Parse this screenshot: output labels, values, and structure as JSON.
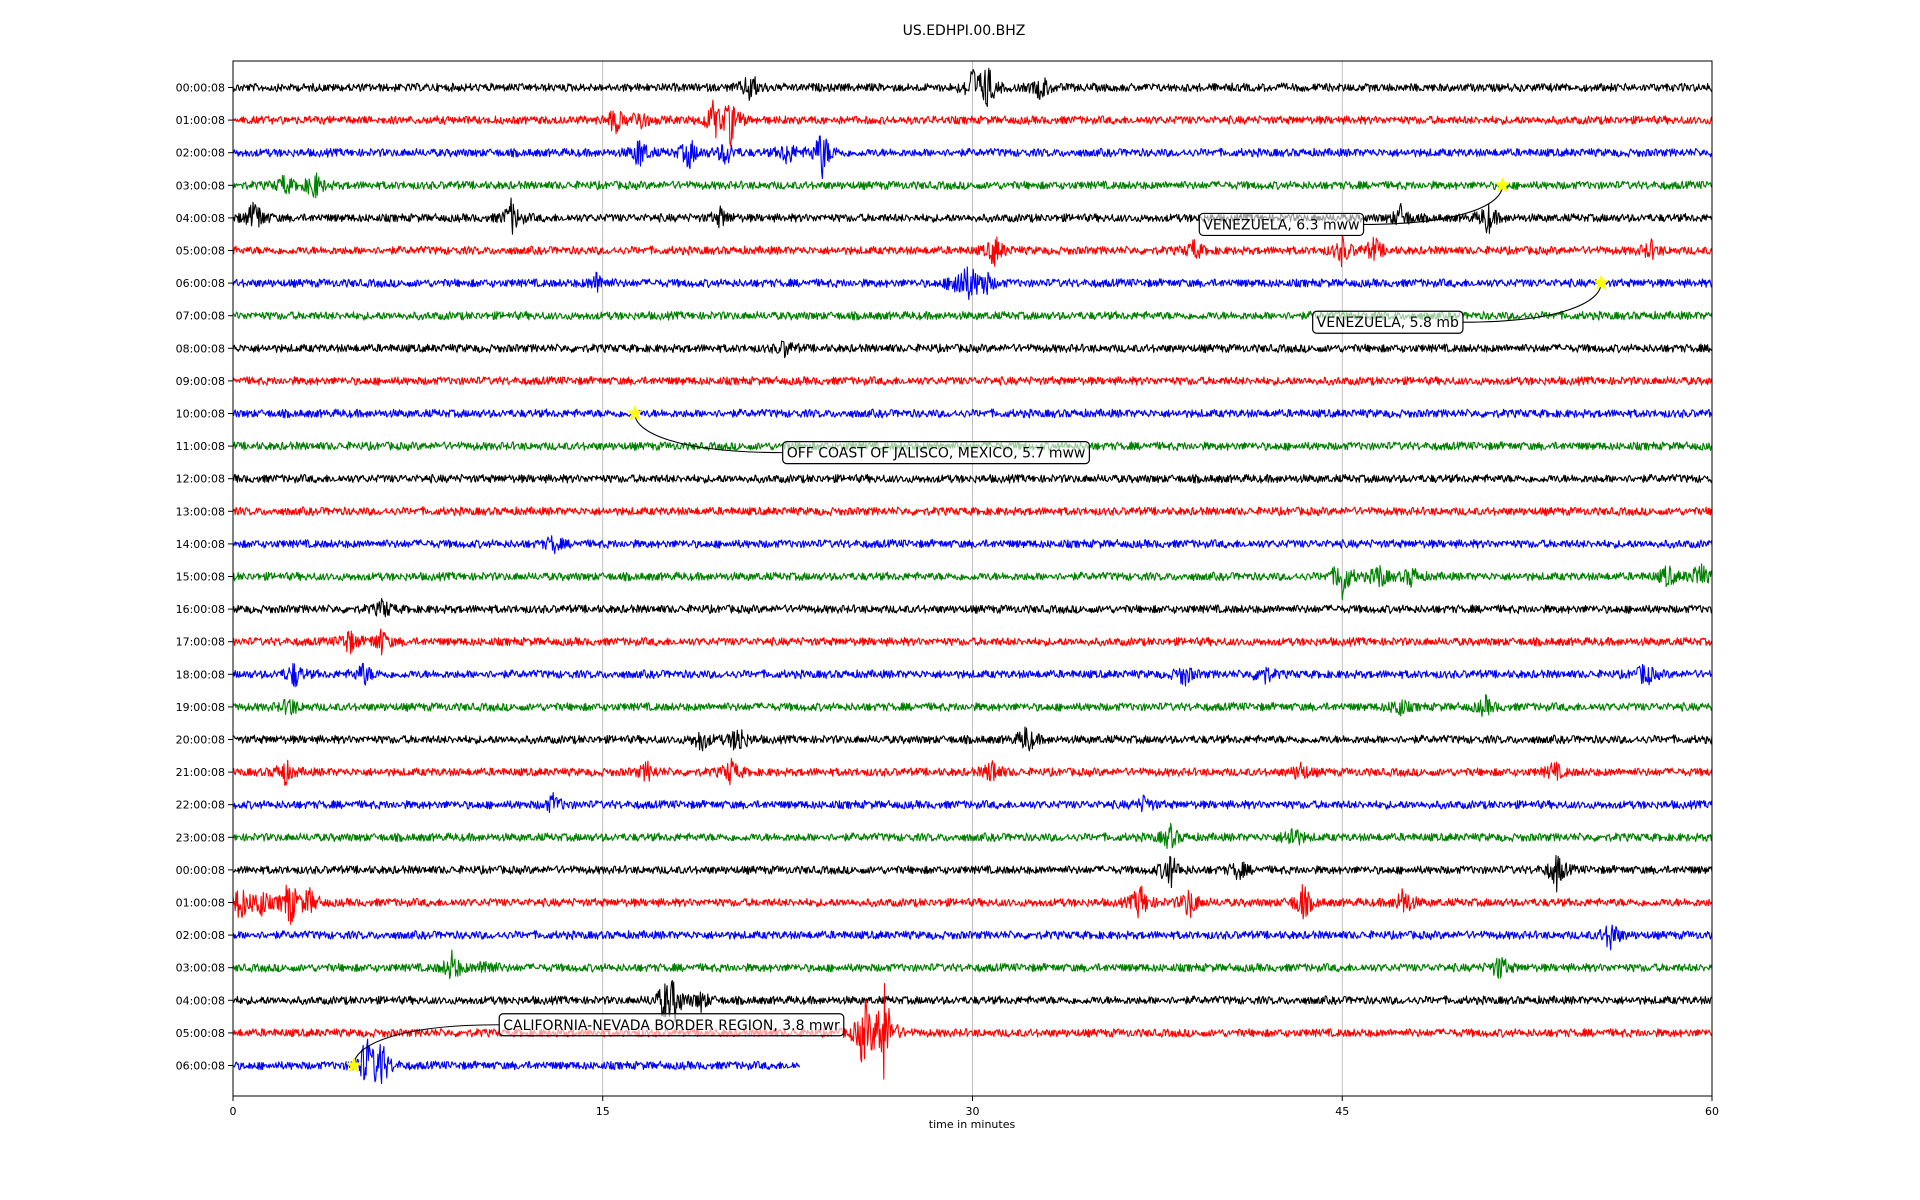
{
  "chart_data": {
    "type": "line",
    "title": "US.EDHPI.00.BHZ",
    "xlabel": "time in minutes",
    "ylabel": "",
    "xlim": [
      0,
      60
    ],
    "xticks": [
      "0",
      "15",
      "30",
      "45",
      "60"
    ],
    "xtick_values": [
      0,
      15,
      30,
      45,
      60
    ],
    "grid": "vertical",
    "trace_colors": [
      "#000000",
      "#ff0000",
      "#0000ff",
      "#008000"
    ],
    "rows": [
      {
        "label": "00:00:08",
        "end": 60,
        "bursts": [
          [
            21,
            0.5
          ],
          [
            30,
            0.6
          ],
          [
            30.6,
            0.7
          ],
          [
            32.8,
            0.4
          ]
        ]
      },
      {
        "label": "01:00:08",
        "end": 60,
        "bursts": [
          [
            15.5,
            0.4
          ],
          [
            16.5,
            0.35
          ],
          [
            19.5,
            0.6
          ],
          [
            20.2,
            0.7
          ]
        ]
      },
      {
        "label": "02:00:08",
        "end": 60,
        "bursts": [
          [
            16.5,
            0.5
          ],
          [
            18.5,
            0.5
          ],
          [
            20,
            0.4
          ],
          [
            22.5,
            0.4
          ],
          [
            23.9,
            0.8
          ]
        ]
      },
      {
        "label": "03:00:08",
        "end": 60,
        "bursts": [
          [
            2.1,
            0.3
          ],
          [
            3.3,
            0.45
          ]
        ]
      },
      {
        "label": "04:00:08",
        "end": 60,
        "bursts": [
          [
            0.9,
            0.6
          ],
          [
            11.3,
            0.55
          ],
          [
            19.8,
            0.3
          ],
          [
            47.4,
            0.4
          ],
          [
            50.9,
            0.5
          ]
        ]
      },
      {
        "label": "05:00:08",
        "end": 60,
        "bursts": [
          [
            30.9,
            0.5
          ],
          [
            39,
            0.3
          ],
          [
            45,
            0.45
          ],
          [
            46.3,
            0.4
          ],
          [
            57.5,
            0.3
          ]
        ]
      },
      {
        "label": "06:00:08",
        "end": 60,
        "bursts": [
          [
            14.8,
            0.35
          ],
          [
            29.4,
            0.5
          ],
          [
            29.9,
            0.5
          ],
          [
            30.5,
            0.4
          ]
        ]
      },
      {
        "label": "07:00:08",
        "end": 60,
        "bursts": []
      },
      {
        "label": "08:00:08",
        "end": 60,
        "bursts": [
          [
            22.4,
            0.25
          ]
        ]
      },
      {
        "label": "09:00:08",
        "end": 60,
        "bursts": []
      },
      {
        "label": "10:00:08",
        "end": 60,
        "bursts": []
      },
      {
        "label": "11:00:08",
        "end": 60,
        "bursts": []
      },
      {
        "label": "12:00:08",
        "end": 60,
        "bursts": []
      },
      {
        "label": "13:00:08",
        "end": 60,
        "bursts": []
      },
      {
        "label": "14:00:08",
        "end": 60,
        "bursts": [
          [
            13,
            0.25
          ]
        ]
      },
      {
        "label": "15:00:08",
        "end": 60,
        "bursts": [
          [
            45,
            0.75
          ],
          [
            46.5,
            0.4
          ],
          [
            47.8,
            0.3
          ],
          [
            58.2,
            0.35
          ],
          [
            59.5,
            0.45
          ]
        ]
      },
      {
        "label": "16:00:08",
        "end": 60,
        "bursts": [
          [
            6.1,
            0.3
          ]
        ]
      },
      {
        "label": "17:00:08",
        "end": 60,
        "bursts": [
          [
            4.7,
            0.4
          ],
          [
            6,
            0.4
          ]
        ]
      },
      {
        "label": "18:00:08",
        "end": 60,
        "bursts": [
          [
            2.5,
            0.4
          ],
          [
            5.3,
            0.35
          ],
          [
            38.6,
            0.35
          ],
          [
            41.8,
            0.35
          ],
          [
            57.3,
            0.4
          ]
        ]
      },
      {
        "label": "19:00:08",
        "end": 60,
        "bursts": [
          [
            2.3,
            0.3
          ],
          [
            47.3,
            0.3
          ],
          [
            50.8,
            0.3
          ]
        ]
      },
      {
        "label": "20:00:08",
        "end": 60,
        "bursts": [
          [
            19,
            0.35
          ],
          [
            20.5,
            0.5
          ],
          [
            32.2,
            0.45
          ]
        ]
      },
      {
        "label": "21:00:08",
        "end": 60,
        "bursts": [
          [
            2.1,
            0.4
          ],
          [
            16.8,
            0.3
          ],
          [
            20.2,
            0.4
          ],
          [
            30.8,
            0.4
          ],
          [
            43.3,
            0.3
          ],
          [
            53.6,
            0.3
          ]
        ]
      },
      {
        "label": "22:00:08",
        "end": 60,
        "bursts": [
          [
            13,
            0.3
          ],
          [
            37,
            0.25
          ]
        ]
      },
      {
        "label": "23:00:08",
        "end": 60,
        "bursts": [
          [
            38,
            0.4
          ],
          [
            43,
            0.4
          ]
        ]
      },
      {
        "label": "00:00:08",
        "end": 60,
        "bursts": [
          [
            38,
            0.6
          ],
          [
            40.8,
            0.3
          ],
          [
            53.7,
            0.6
          ]
        ]
      },
      {
        "label": "01:00:08",
        "end": 60,
        "bursts": [
          [
            0.3,
            0.6
          ],
          [
            1.1,
            0.5
          ],
          [
            2.3,
            0.8
          ],
          [
            3.1,
            0.4
          ],
          [
            36.8,
            0.6
          ],
          [
            38.8,
            0.5
          ],
          [
            43.4,
            0.6
          ],
          [
            47.5,
            0.5
          ]
        ]
      },
      {
        "label": "02:00:08",
        "end": 60,
        "bursts": [
          [
            55.9,
            0.5
          ]
        ]
      },
      {
        "label": "03:00:08",
        "end": 60,
        "bursts": [
          [
            8.9,
            0.5
          ],
          [
            10.3,
            0.3
          ],
          [
            51.4,
            0.4
          ]
        ]
      },
      {
        "label": "04:00:08",
        "end": 60,
        "bursts": [
          [
            17.5,
            0.5
          ],
          [
            17.9,
            0.6
          ],
          [
            19,
            0.3
          ]
        ]
      },
      {
        "label": "05:00:08",
        "end": 60,
        "bursts": [
          [
            25.6,
            1.2
          ],
          [
            26.4,
            1.7
          ]
        ]
      },
      {
        "label": "06:00:08",
        "end": 23,
        "bursts": [
          [
            5.4,
            0.9
          ],
          [
            6,
            0.8
          ]
        ]
      }
    ],
    "events": [
      {
        "label": "VENEZUELA, 6.3 mww",
        "row": 3,
        "x": 51.5,
        "label_row": 4.2,
        "label_x": 39.2
      },
      {
        "label": "VENEZUELA, 5.8 mb",
        "row": 6,
        "x": 55.5,
        "label_row": 7.2,
        "label_x": 43.8
      },
      {
        "label": "OFF COAST OF JALISCO, MEXICO, 5.7 mww",
        "row": 10,
        "x": 16.3,
        "label_row": 11.2,
        "label_x": 22.3
      },
      {
        "label": "CALIFORNIA-NEVADA BORDER REGION, 3.8 mwr",
        "row": 30,
        "x": 4.9,
        "label_row": 28.75,
        "label_x": 10.8
      }
    ],
    "event_marker_color": "#ffff00"
  }
}
